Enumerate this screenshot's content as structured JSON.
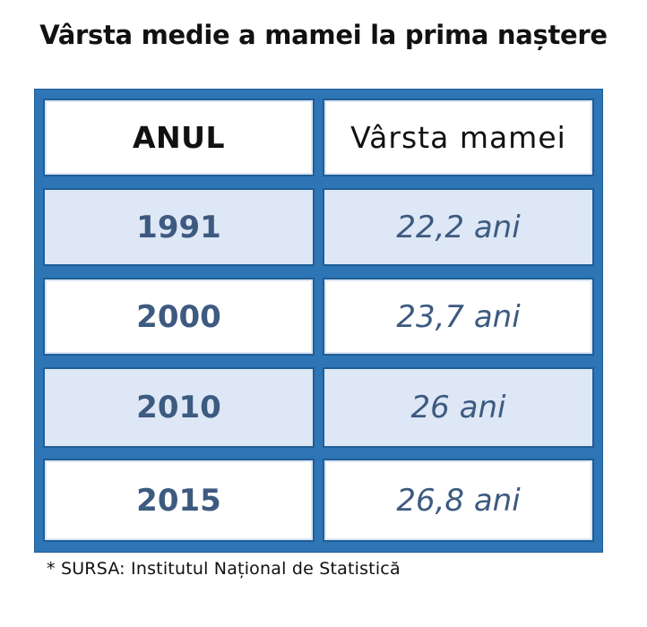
{
  "title": "Vârsta medie a mamei la prima naștere",
  "table": {
    "headers": [
      "ANUL",
      "Vârsta mamei"
    ],
    "rows": [
      {
        "year": "1991",
        "age": "22,2 ani"
      },
      {
        "year": "2000",
        "age": "23,7 ani"
      },
      {
        "year": "2010",
        "age": "26 ani"
      },
      {
        "year": "2015",
        "age": "26,8 ani"
      }
    ]
  },
  "source": "* SURSA: Institutul Național de Statistică",
  "colors": {
    "frame": "#2e75b6",
    "alt_row": "#dde7f5",
    "value_text": "#3d5a80"
  },
  "chart_data": {
    "type": "table",
    "title": "Vârsta medie a mamei la prima naștere",
    "columns": [
      "ANUL",
      "Vârsta mamei"
    ],
    "x": [
      1991,
      2000,
      2010,
      2015
    ],
    "values": [
      22.2,
      23.7,
      26,
      26.8
    ],
    "unit": "ani"
  }
}
